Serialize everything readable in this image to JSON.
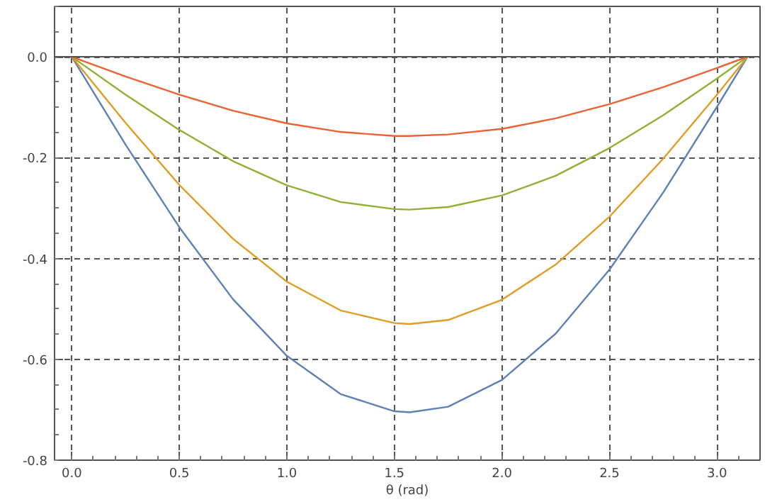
{
  "chart_data": {
    "type": "line",
    "xlabel": "θ (rad)",
    "x": [
      0,
      0.25,
      0.5,
      0.75,
      1.0,
      1.25,
      1.5,
      1.571,
      1.75,
      2.0,
      2.25,
      2.5,
      2.75,
      3.0,
      3.1416
    ],
    "series": [
      {
        "color": "#5e81b5",
        "values": [
          0,
          -0.174,
          -0.338,
          -0.481,
          -0.593,
          -0.669,
          -0.703,
          -0.705,
          -0.694,
          -0.641,
          -0.549,
          -0.422,
          -0.269,
          -0.099,
          0
        ]
      },
      {
        "color": "#e19c24",
        "values": [
          0,
          -0.131,
          -0.254,
          -0.361,
          -0.446,
          -0.503,
          -0.528,
          -0.53,
          -0.522,
          -0.482,
          -0.412,
          -0.317,
          -0.202,
          -0.075,
          0
        ]
      },
      {
        "color": "#8fb032",
        "values": [
          0,
          -0.075,
          -0.145,
          -0.207,
          -0.255,
          -0.288,
          -0.302,
          -0.303,
          -0.298,
          -0.275,
          -0.236,
          -0.181,
          -0.116,
          -0.043,
          0
        ]
      },
      {
        "color": "#eb6235",
        "values": [
          0,
          -0.039,
          -0.075,
          -0.107,
          -0.132,
          -0.149,
          -0.157,
          -0.157,
          -0.154,
          -0.143,
          -0.122,
          -0.094,
          -0.06,
          -0.022,
          0
        ]
      }
    ],
    "xlim": [
      -0.08,
      3.2
    ],
    "ylim": [
      -0.8,
      0.1
    ],
    "xticks": [
      {
        "value": 0,
        "label": "0.0"
      },
      0.5,
      {
        "value": 1,
        "label": "1.0"
      },
      1.5,
      {
        "value": 2,
        "label": "2.0"
      },
      2.5,
      {
        "value": 3,
        "label": "3.0"
      }
    ],
    "yticks": [
      {
        "value": -0.8,
        "label": "-0.8"
      },
      {
        "value": -0.6,
        "label": "-0.6"
      },
      {
        "value": -0.4,
        "label": "-0.4"
      },
      {
        "value": -0.2,
        "label": "-0.2"
      },
      {
        "value": 0,
        "label": "0.0"
      }
    ],
    "grid": true,
    "line_style": "solid",
    "ref_lines": [
      {
        "axis": "y",
        "value": 0,
        "color": "#555555",
        "line_style": "solid"
      }
    ]
  }
}
